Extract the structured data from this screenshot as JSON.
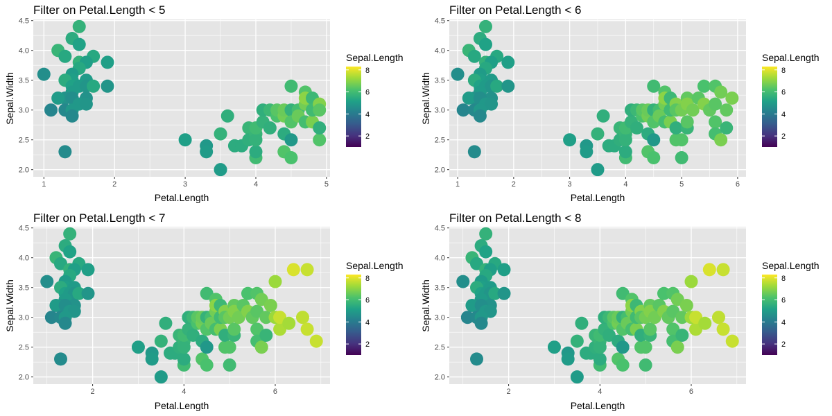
{
  "legend_title": "Sepal.Length",
  "legend_ticks": [
    2,
    4,
    6,
    8
  ],
  "color_range": [
    1,
    8.3
  ],
  "colors": {
    "panel_bg": "#e5e5e5",
    "grid": "#ffffff"
  },
  "palette": [
    "#440154",
    "#46327e",
    "#365c8d",
    "#277f8e",
    "#1fa187",
    "#4ac16d",
    "#a0da39",
    "#fde725"
  ],
  "chart_data": [
    {
      "type": "scatter",
      "title": "Filter on Petal.Length < 5",
      "xlabel": "Petal.Length",
      "ylabel": "Sepal.Width",
      "xlim": [
        0.85,
        5.05
      ],
      "ylim": [
        1.88,
        4.52
      ],
      "xticks": [
        "1",
        "2",
        "3",
        "4",
        "5"
      ],
      "yticks": [
        "2.0",
        "2.5",
        "3.0",
        "3.5",
        "4.0",
        "4.5"
      ],
      "filter_max": 5
    },
    {
      "type": "scatter",
      "title": "Filter on Petal.Length < 6",
      "xlabel": "Petal.Length",
      "ylabel": "Sepal.Width",
      "xlim": [
        0.85,
        6.15
      ],
      "ylim": [
        1.88,
        4.52
      ],
      "xticks": [
        "1",
        "2",
        "3",
        "4",
        "5",
        "6"
      ],
      "yticks": [
        "2.0",
        "2.5",
        "3.0",
        "3.5",
        "4.0",
        "4.5"
      ],
      "filter_max": 6
    },
    {
      "type": "scatter",
      "title": "Filter on Petal.Length < 7",
      "xlabel": "Petal.Length",
      "ylabel": "Sepal.Width",
      "xlim": [
        0.7,
        7.2
      ],
      "ylim": [
        1.88,
        4.52
      ],
      "xticks": [
        "2",
        "4",
        "6"
      ],
      "yticks": [
        "2.0",
        "2.5",
        "3.0",
        "3.5",
        "4.0",
        "4.5"
      ],
      "filter_max": 7
    },
    {
      "type": "scatter",
      "title": "Filter on Petal.Length < 8",
      "xlabel": "Petal.Length",
      "ylabel": "Sepal.Width",
      "xlim": [
        0.7,
        7.2
      ],
      "ylim": [
        1.88,
        4.52
      ],
      "xticks": [
        "2",
        "4",
        "6"
      ],
      "yticks": [
        "2.0",
        "2.5",
        "3.0",
        "3.5",
        "4.0",
        "4.5"
      ],
      "filter_max": 8
    }
  ],
  "points": [
    {
      "x": 1.5,
      "y": 4.4,
      "c": 5.7
    },
    {
      "x": 1.4,
      "y": 4.2,
      "c": 5.5
    },
    {
      "x": 1.5,
      "y": 4.1,
      "c": 5.2
    },
    {
      "x": 1.2,
      "y": 4.0,
      "c": 5.8
    },
    {
      "x": 1.3,
      "y": 3.9,
      "c": 5.4
    },
    {
      "x": 1.7,
      "y": 3.9,
      "c": 5.4
    },
    {
      "x": 1.5,
      "y": 3.8,
      "c": 5.7
    },
    {
      "x": 1.9,
      "y": 3.8,
      "c": 5.1
    },
    {
      "x": 1.6,
      "y": 3.8,
      "c": 5.1
    },
    {
      "x": 1.5,
      "y": 3.7,
      "c": 5.4
    },
    {
      "x": 1.4,
      "y": 3.6,
      "c": 5.0
    },
    {
      "x": 1.0,
      "y": 3.6,
      "c": 4.6
    },
    {
      "x": 1.4,
      "y": 3.5,
      "c": 5.1
    },
    {
      "x": 1.6,
      "y": 3.5,
      "c": 5.0
    },
    {
      "x": 1.3,
      "y": 3.5,
      "c": 5.5
    },
    {
      "x": 1.4,
      "y": 3.4,
      "c": 5.2
    },
    {
      "x": 1.5,
      "y": 3.4,
      "c": 5.0
    },
    {
      "x": 1.6,
      "y": 3.4,
      "c": 4.8
    },
    {
      "x": 1.7,
      "y": 3.4,
      "c": 5.4
    },
    {
      "x": 1.9,
      "y": 3.4,
      "c": 4.8
    },
    {
      "x": 1.4,
      "y": 3.3,
      "c": 5.0
    },
    {
      "x": 1.6,
      "y": 3.2,
      "c": 4.7
    },
    {
      "x": 1.3,
      "y": 3.2,
      "c": 4.7
    },
    {
      "x": 1.2,
      "y": 3.2,
      "c": 5.0
    },
    {
      "x": 1.4,
      "y": 3.2,
      "c": 4.6
    },
    {
      "x": 1.5,
      "y": 3.1,
      "c": 4.9
    },
    {
      "x": 1.6,
      "y": 3.1,
      "c": 4.8
    },
    {
      "x": 1.1,
      "y": 3.0,
      "c": 4.3
    },
    {
      "x": 1.3,
      "y": 3.0,
      "c": 4.4
    },
    {
      "x": 1.4,
      "y": 3.0,
      "c": 4.9
    },
    {
      "x": 1.4,
      "y": 2.9,
      "c": 4.4
    },
    {
      "x": 1.3,
      "y": 2.3,
      "c": 4.5
    },
    {
      "x": 3.0,
      "y": 2.5,
      "c": 5.1
    },
    {
      "x": 3.3,
      "y": 2.4,
      "c": 4.9
    },
    {
      "x": 3.3,
      "y": 2.3,
      "c": 5.0
    },
    {
      "x": 3.5,
      "y": 2.0,
      "c": 5.0
    },
    {
      "x": 3.5,
      "y": 2.6,
      "c": 5.7
    },
    {
      "x": 3.6,
      "y": 2.9,
      "c": 5.6
    },
    {
      "x": 3.7,
      "y": 2.4,
      "c": 5.5
    },
    {
      "x": 3.8,
      "y": 2.4,
      "c": 5.5
    },
    {
      "x": 3.9,
      "y": 2.7,
      "c": 5.8
    },
    {
      "x": 3.9,
      "y": 2.5,
      "c": 5.6
    },
    {
      "x": 4.0,
      "y": 2.2,
      "c": 6.0
    },
    {
      "x": 4.0,
      "y": 2.3,
      "c": 5.5
    },
    {
      "x": 4.0,
      "y": 2.6,
      "c": 5.8
    },
    {
      "x": 4.0,
      "y": 2.5,
      "c": 5.7
    },
    {
      "x": 4.0,
      "y": 2.7,
      "c": 6.0
    },
    {
      "x": 4.1,
      "y": 2.8,
      "c": 5.7
    },
    {
      "x": 4.1,
      "y": 3.0,
      "c": 5.6
    },
    {
      "x": 4.2,
      "y": 3.0,
      "c": 5.9
    },
    {
      "x": 4.2,
      "y": 2.7,
      "c": 5.6
    },
    {
      "x": 4.3,
      "y": 2.9,
      "c": 6.2
    },
    {
      "x": 4.3,
      "y": 3.0,
      "c": 6.4
    },
    {
      "x": 4.4,
      "y": 2.9,
      "c": 6.7
    },
    {
      "x": 4.4,
      "y": 3.0,
      "c": 6.6
    },
    {
      "x": 4.4,
      "y": 2.3,
      "c": 6.3
    },
    {
      "x": 4.4,
      "y": 2.6,
      "c": 5.5
    },
    {
      "x": 4.5,
      "y": 3.4,
      "c": 6.0
    },
    {
      "x": 4.5,
      "y": 2.2,
      "c": 6.2
    },
    {
      "x": 4.5,
      "y": 3.0,
      "c": 5.7
    },
    {
      "x": 4.5,
      "y": 2.8,
      "c": 6.3
    },
    {
      "x": 4.5,
      "y": 2.5,
      "c": 4.9
    },
    {
      "x": 4.6,
      "y": 3.0,
      "c": 6.1
    },
    {
      "x": 4.6,
      "y": 2.9,
      "c": 6.6
    },
    {
      "x": 4.7,
      "y": 3.3,
      "c": 6.3
    },
    {
      "x": 4.7,
      "y": 3.1,
      "c": 6.7
    },
    {
      "x": 4.7,
      "y": 2.8,
      "c": 6.1
    },
    {
      "x": 4.7,
      "y": 3.2,
      "c": 7.0
    },
    {
      "x": 4.8,
      "y": 2.8,
      "c": 6.8
    },
    {
      "x": 4.8,
      "y": 3.2,
      "c": 5.9
    },
    {
      "x": 4.8,
      "y": 3.0,
      "c": 6.0
    },
    {
      "x": 4.9,
      "y": 2.5,
      "c": 6.3
    },
    {
      "x": 4.9,
      "y": 3.1,
      "c": 6.9
    },
    {
      "x": 4.9,
      "y": 2.7,
      "c": 5.6
    },
    {
      "x": 4.9,
      "y": 3.0,
      "c": 6.4
    },
    {
      "x": 5.0,
      "y": 2.2,
      "c": 6.0
    },
    {
      "x": 5.0,
      "y": 3.0,
      "c": 6.7
    },
    {
      "x": 5.0,
      "y": 2.5,
      "c": 6.3
    },
    {
      "x": 5.1,
      "y": 2.7,
      "c": 5.8
    },
    {
      "x": 5.1,
      "y": 3.2,
      "c": 6.5
    },
    {
      "x": 5.1,
      "y": 2.8,
      "c": 6.4
    },
    {
      "x": 5.1,
      "y": 3.1,
      "c": 6.9
    },
    {
      "x": 5.2,
      "y": 3.0,
      "c": 6.7
    },
    {
      "x": 5.3,
      "y": 3.2,
      "c": 6.4
    },
    {
      "x": 5.4,
      "y": 3.4,
      "c": 6.2
    },
    {
      "x": 5.4,
      "y": 3.1,
      "c": 6.9
    },
    {
      "x": 5.5,
      "y": 3.0,
      "c": 6.5
    },
    {
      "x": 5.6,
      "y": 2.8,
      "c": 6.3
    },
    {
      "x": 5.6,
      "y": 3.4,
      "c": 6.3
    },
    {
      "x": 5.6,
      "y": 2.6,
      "c": 6.1
    },
    {
      "x": 5.6,
      "y": 3.1,
      "c": 6.4
    },
    {
      "x": 5.7,
      "y": 3.3,
      "c": 6.7
    },
    {
      "x": 5.7,
      "y": 2.5,
      "c": 6.8
    },
    {
      "x": 5.8,
      "y": 3.0,
      "c": 6.5
    },
    {
      "x": 5.8,
      "y": 2.7,
      "c": 5.8
    },
    {
      "x": 5.9,
      "y": 3.2,
      "c": 6.8
    },
    {
      "x": 6.0,
      "y": 3.6,
      "c": 7.2
    },
    {
      "x": 6.0,
      "y": 3.0,
      "c": 7.2
    },
    {
      "x": 6.1,
      "y": 2.8,
      "c": 7.4
    },
    {
      "x": 6.1,
      "y": 3.0,
      "c": 7.7
    },
    {
      "x": 6.3,
      "y": 2.9,
      "c": 7.3
    },
    {
      "x": 6.4,
      "y": 3.8,
      "c": 7.9
    },
    {
      "x": 6.6,
      "y": 3.0,
      "c": 7.6
    },
    {
      "x": 6.7,
      "y": 3.8,
      "c": 7.7
    },
    {
      "x": 6.7,
      "y": 2.8,
      "c": 7.7
    },
    {
      "x": 6.9,
      "y": 2.6,
      "c": 7.7
    }
  ]
}
